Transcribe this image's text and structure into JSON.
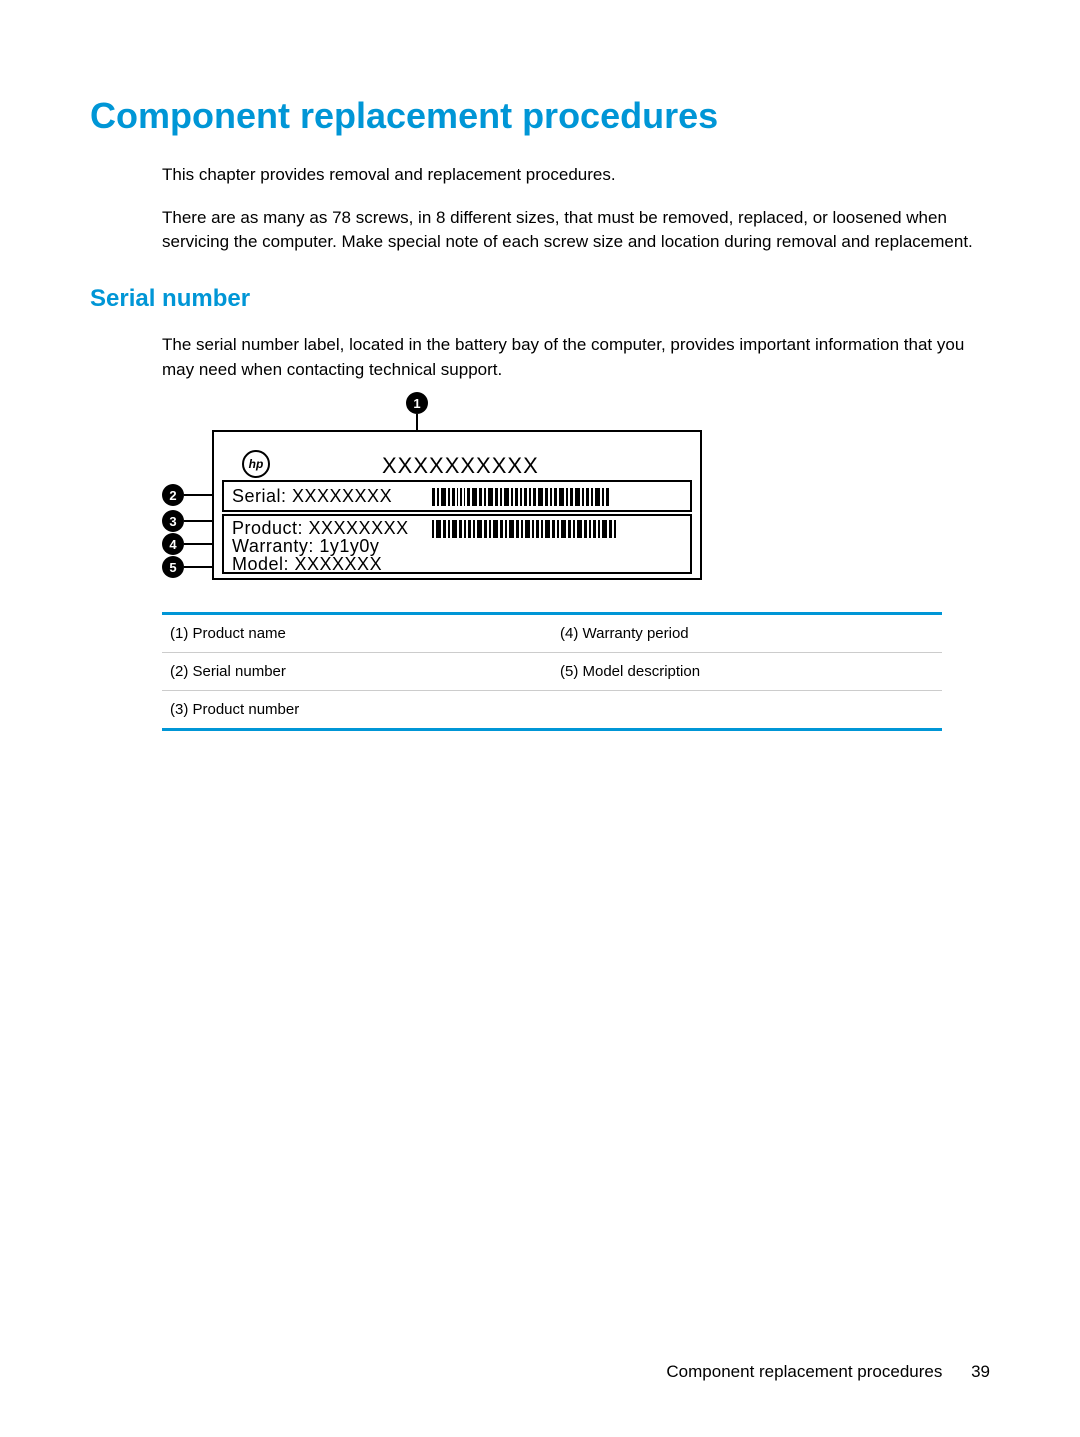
{
  "title": "Component replacement procedures",
  "intro_p1": "This chapter provides removal and replacement procedures.",
  "intro_p2": "There are as many as 78 screws, in 8 different sizes, that must be removed, replaced, or loosened when servicing the computer. Make special note of each screw size and location during removal and replacement.",
  "section1_title": "Serial number",
  "section1_p1": "The serial number label, located in the battery bay of the computer, provides important information that you may need when contacting technical support.",
  "diagram": {
    "logo_text": "hp",
    "product_name_placeholder": "XXXXXXXXXX",
    "serial_label": "Serial:  XXXXXXXX",
    "product_label": "Product: XXXXXXXX",
    "warranty_label": "Warranty: 1y1y0y",
    "model_label": "Model: XXXXXXX",
    "callouts": [
      "1",
      "2",
      "3",
      "4",
      "5"
    ],
    "barcode_pattern": [
      3,
      2,
      5,
      2,
      3,
      1,
      2,
      1,
      3,
      5,
      3,
      2,
      5,
      3,
      2,
      5,
      2,
      3,
      2,
      3,
      2,
      3,
      5,
      3,
      2,
      3,
      5,
      2,
      3,
      5,
      2,
      3,
      2,
      5,
      2,
      3
    ],
    "barcode_pattern2": [
      2,
      5,
      3,
      2,
      5,
      3,
      2,
      3,
      2,
      5,
      3,
      2,
      5,
      3,
      2,
      5,
      3,
      2,
      5,
      2,
      3,
      2,
      5,
      3,
      2,
      5,
      3,
      2,
      5,
      3,
      2,
      3,
      2,
      5,
      3,
      2
    ]
  },
  "legend": {
    "rows": [
      {
        "left": "(1) Product name",
        "right": "(4) Warranty period"
      },
      {
        "left": "(2) Serial number",
        "right": "(5) Model description"
      },
      {
        "left": "(3) Product number",
        "right": ""
      }
    ]
  },
  "footer_text": "Component replacement procedures",
  "page_number": "39",
  "colors": {
    "heading": "#0096d6",
    "text": "#000000",
    "table_border": "#0096d6",
    "row_divider": "#cccccc"
  }
}
